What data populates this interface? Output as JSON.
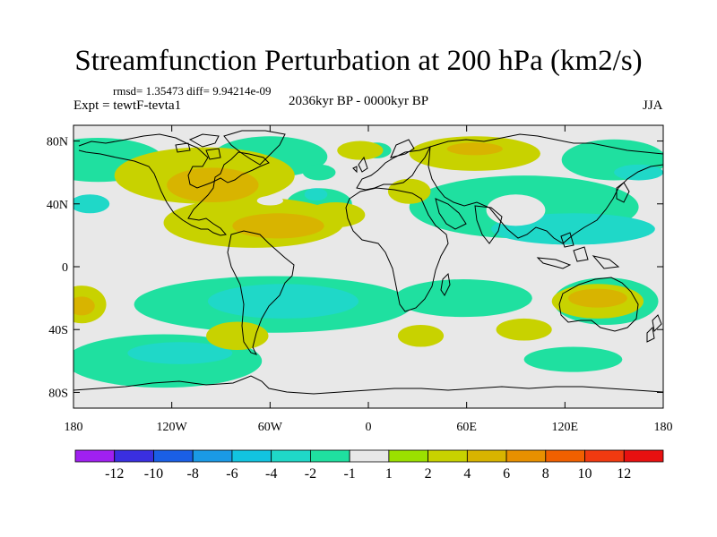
{
  "header": {
    "title": "Streamfunction Perturbation at 200 hPa (km2/s)",
    "stats": "rmsd= 1.35473 diff= 9.94214e-09",
    "experiment": "Expt = tewtF-tevta1",
    "period": "2036kyr BP - 0000kyr BP",
    "season": "JJA"
  },
  "chart_data": {
    "type": "heatmap",
    "title": "Streamfunction Perturbation at 200 hPa (km2/s)",
    "projection": "cylindrical-equidistant",
    "xlabel": "",
    "ylabel": "",
    "xlim": [
      -180,
      180
    ],
    "ylim": [
      -90,
      90
    ],
    "x_ticks": [
      -180,
      -120,
      -60,
      0,
      60,
      120,
      180
    ],
    "x_tick_labels": [
      "180",
      "120W",
      "60W",
      "0",
      "60E",
      "120E",
      "180"
    ],
    "y_ticks": [
      80,
      40,
      0,
      -40,
      -80
    ],
    "y_tick_labels": [
      "80N",
      "40N",
      "0",
      "40S",
      "80S"
    ],
    "colorbar": {
      "labels": [
        "-12",
        "-10",
        "-8",
        "-6",
        "-4",
        "-2",
        "-1",
        "1",
        "2",
        "4",
        "6",
        "8",
        "10",
        "12"
      ],
      "colors": [
        "#a020f0",
        "#3a2fe0",
        "#1a5fe6",
        "#1a9ae6",
        "#12c4e0",
        "#1fd8c8",
        "#1fe0a0",
        "#e8e8e8",
        "#9be000",
        "#c8d200",
        "#d8b400",
        "#e89000",
        "#f06000",
        "#f03a10",
        "#e81010"
      ]
    },
    "fields": [
      {
        "level": "-1",
        "center": [
          -165,
          68
        ],
        "radius": [
          40,
          14
        ]
      },
      {
        "level": "-1",
        "center": [
          -60,
          70
        ],
        "radius": [
          35,
          13
        ]
      },
      {
        "level": "-1",
        "center": [
          -30,
          40
        ],
        "radius": [
          20,
          10
        ]
      },
      {
        "level": "-1",
        "center": [
          -30,
          60
        ],
        "radius": [
          10,
          5
        ]
      },
      {
        "level": "-1",
        "center": [
          5,
          74
        ],
        "radius": [
          9,
          5
        ]
      },
      {
        "level": "-1",
        "center": [
          150,
          68
        ],
        "radius": [
          32,
          13
        ]
      },
      {
        "level": "-1",
        "center": [
          95,
          38
        ],
        "radius": [
          70,
          20
        ]
      },
      {
        "level": "-1",
        "center": [
          -58,
          -24
        ],
        "radius": [
          85,
          18
        ]
      },
      {
        "level": "-1",
        "center": [
          58,
          -20
        ],
        "radius": [
          42,
          12
        ]
      },
      {
        "level": "-1",
        "center": [
          145,
          -22
        ],
        "radius": [
          32,
          15
        ]
      },
      {
        "level": "-1",
        "center": [
          -125,
          -60
        ],
        "radius": [
          60,
          17
        ]
      },
      {
        "level": "-1",
        "center": [
          125,
          -59
        ],
        "radius": [
          30,
          8
        ]
      },
      {
        "level": "-2",
        "center": [
          -170,
          40
        ],
        "radius": [
          12,
          6
        ]
      },
      {
        "level": "-2",
        "center": [
          -52,
          -22
        ],
        "radius": [
          46,
          11
        ]
      },
      {
        "level": "-2",
        "center": [
          125,
          24
        ],
        "radius": [
          50,
          10
        ]
      },
      {
        "level": "-2",
        "center": [
          165,
          60
        ],
        "radius": [
          15,
          5
        ]
      },
      {
        "level": "-2",
        "center": [
          -115,
          -55
        ],
        "radius": [
          32,
          7
        ]
      },
      {
        "level": "-2",
        "center": [
          -32,
          46
        ],
        "radius": [
          7,
          4
        ]
      },
      {
        "level": "2",
        "center": [
          -100,
          58
        ],
        "radius": [
          55,
          18
        ]
      },
      {
        "level": "2",
        "center": [
          -70,
          28
        ],
        "radius": [
          55,
          16
        ]
      },
      {
        "level": "2",
        "center": [
          -20,
          33
        ],
        "radius": [
          18,
          8
        ]
      },
      {
        "level": "2",
        "center": [
          65,
          72
        ],
        "radius": [
          40,
          11
        ]
      },
      {
        "level": "2",
        "center": [
          25,
          48
        ],
        "radius": [
          13,
          8
        ]
      },
      {
        "level": "2",
        "center": [
          -175,
          -24
        ],
        "radius": [
          15,
          12
        ]
      },
      {
        "level": "2",
        "center": [
          -80,
          -44
        ],
        "radius": [
          19,
          9
        ]
      },
      {
        "level": "2",
        "center": [
          32,
          -44
        ],
        "radius": [
          14,
          7
        ]
      },
      {
        "level": "2",
        "center": [
          95,
          -40
        ],
        "radius": [
          17,
          7
        ]
      },
      {
        "level": "2",
        "center": [
          140,
          -22
        ],
        "radius": [
          28,
          11
        ]
      },
      {
        "level": "2",
        "center": [
          -5,
          74
        ],
        "radius": [
          14,
          6
        ]
      },
      {
        "level": "4",
        "center": [
          -95,
          52
        ],
        "radius": [
          28,
          11
        ]
      },
      {
        "level": "4",
        "center": [
          -55,
          26
        ],
        "radius": [
          28,
          8
        ]
      },
      {
        "level": "4",
        "center": [
          140,
          -20
        ],
        "radius": [
          18,
          6
        ]
      },
      {
        "level": "4",
        "center": [
          -175,
          -25
        ],
        "radius": [
          8,
          6
        ]
      },
      {
        "level": "4",
        "center": [
          65,
          75
        ],
        "radius": [
          17,
          4
        ]
      }
    ],
    "holes": [
      {
        "center": [
          90,
          36
        ],
        "radius": [
          18,
          10
        ]
      },
      {
        "center": [
          -60,
          42
        ],
        "radius": [
          8,
          3
        ]
      }
    ]
  }
}
